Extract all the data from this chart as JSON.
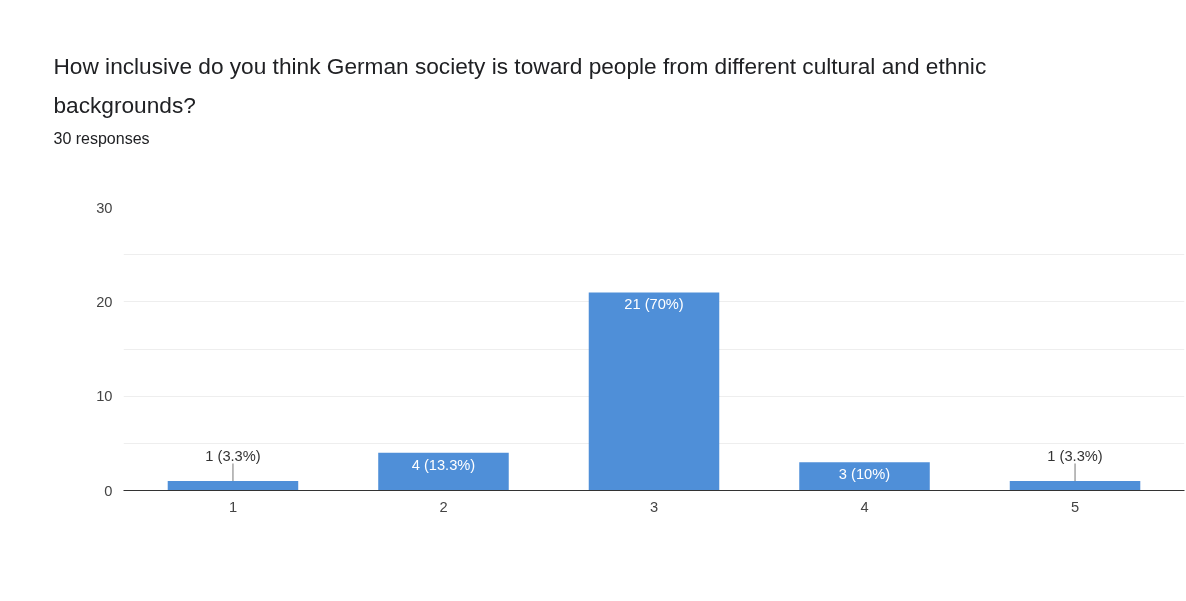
{
  "chart_data": {
    "type": "bar",
    "title": "How inclusive do you think German society is toward people from different cultural and ethnic backgrounds?",
    "subtitle": "30 responses",
    "categories": [
      "1",
      "2",
      "3",
      "4",
      "5"
    ],
    "values": [
      1,
      4,
      21,
      3,
      1
    ],
    "value_labels": [
      "1 (3.3%)",
      "4 (13.3%)",
      "21 (70%)",
      "3 (10%)",
      "1 (3.3%)"
    ],
    "color": "#4f8fd8",
    "ylim": [
      0,
      30
    ],
    "yticks": [
      0,
      {
        "value": 5,
        "label": null
      },
      10,
      {
        "value": 15,
        "label": null
      },
      20,
      {
        "value": 25,
        "label": null
      },
      30
    ],
    "grid": "y"
  }
}
